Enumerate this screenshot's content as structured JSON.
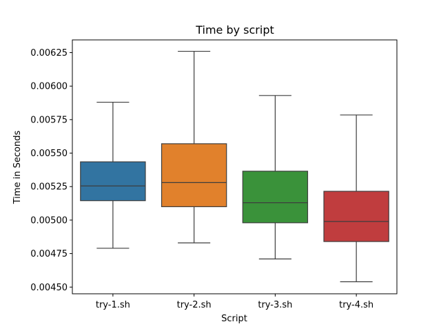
{
  "chart_data": {
    "type": "box",
    "title": "Time by script",
    "xlabel": "Script",
    "ylabel": "Time in Seconds",
    "categories": [
      "try-1.sh",
      "try-2.sh",
      "try-3.sh",
      "try-4.sh"
    ],
    "boxes": [
      {
        "category": "try-1.sh",
        "whisker_low": 0.00479,
        "q1": 0.005145,
        "median": 0.005255,
        "q3": 0.005435,
        "whisker_high": 0.00588,
        "color": "#3274a1"
      },
      {
        "category": "try-2.sh",
        "whisker_low": 0.00483,
        "q1": 0.0051,
        "median": 0.00528,
        "q3": 0.00557,
        "whisker_high": 0.00626,
        "color": "#e1812c"
      },
      {
        "category": "try-3.sh",
        "whisker_low": 0.00471,
        "q1": 0.00498,
        "median": 0.00513,
        "q3": 0.005365,
        "whisker_high": 0.00593,
        "color": "#3a923a"
      },
      {
        "category": "try-4.sh",
        "whisker_low": 0.00454,
        "q1": 0.00484,
        "median": 0.00499,
        "q3": 0.005215,
        "whisker_high": 0.005785,
        "color": "#c03d3e"
      }
    ],
    "ylim": [
      0.00445,
      0.006345
    ],
    "yticks": [
      0.0045,
      0.00475,
      0.005,
      0.00525,
      0.0055,
      0.00575,
      0.006,
      0.00625
    ],
    "ytick_labels": [
      "0.00450",
      "0.00475",
      "0.00500",
      "0.00525",
      "0.00550",
      "0.00575",
      "0.00600",
      "0.00625"
    ],
    "grid": false,
    "legend": "none"
  }
}
